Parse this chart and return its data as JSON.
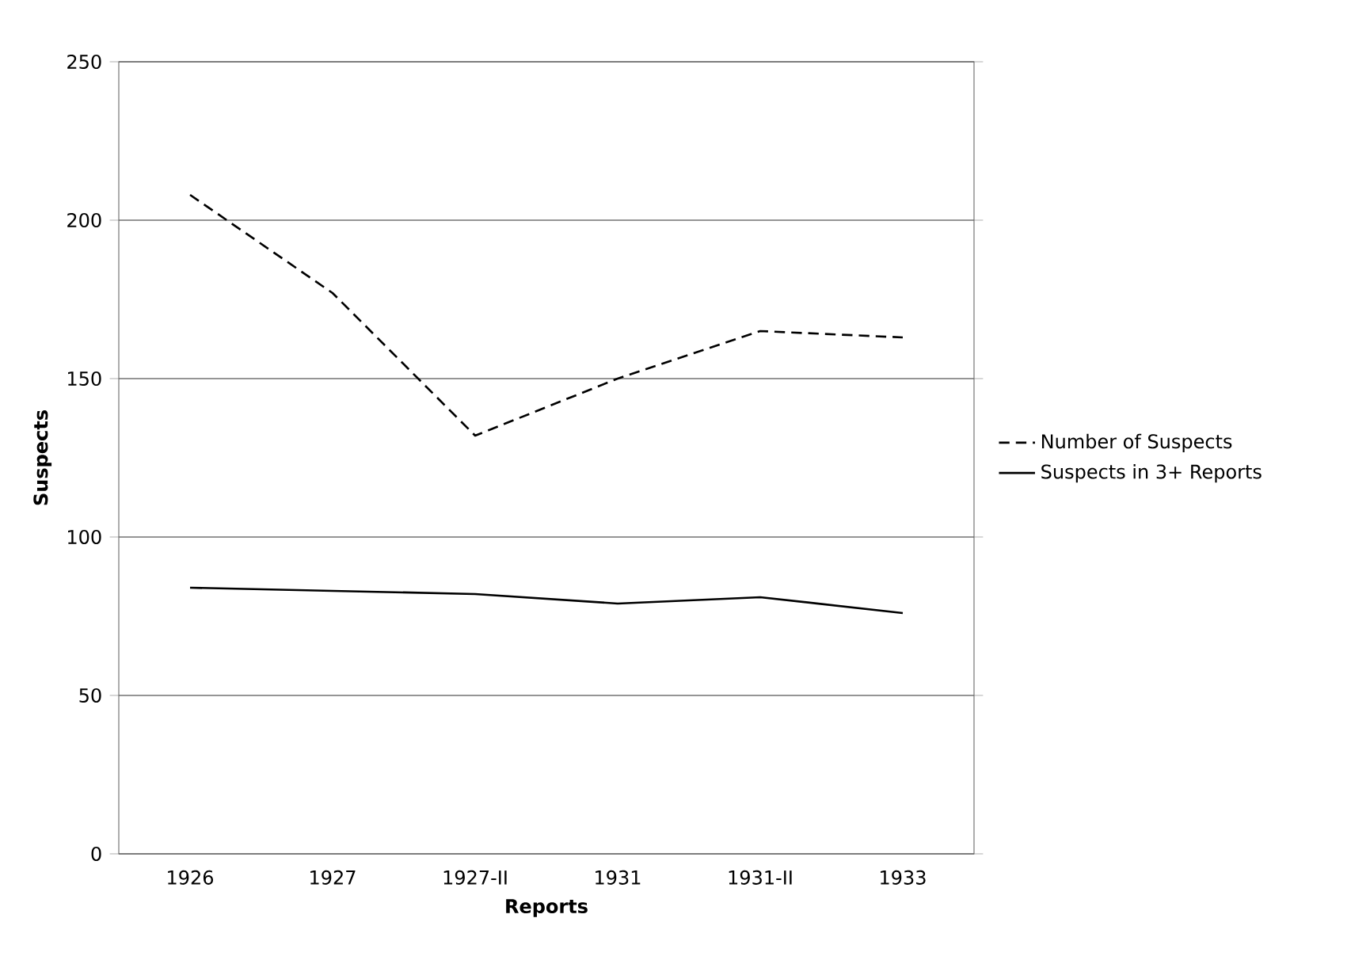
{
  "chart_data": {
    "type": "line",
    "xlabel": "Reports",
    "ylabel": "Suspects",
    "categories": [
      "1926",
      "1927",
      "1927-II",
      "1931",
      "1931-II",
      "1933"
    ],
    "series": [
      {
        "name": "Number of Suspects",
        "color": "#000000",
        "line_style": "dashed",
        "values": [
          208,
          177,
          132,
          150,
          165,
          163
        ]
      },
      {
        "name": "Suspects in 3+ Reports",
        "color": "#000000",
        "line_style": "solid",
        "values": [
          84,
          83,
          82,
          79,
          81,
          76
        ]
      }
    ],
    "ylim": [
      0,
      250
    ],
    "yticks": [
      0,
      50,
      100,
      150,
      200,
      250
    ],
    "grid": "y",
    "legend": "right",
    "marker": "none"
  }
}
